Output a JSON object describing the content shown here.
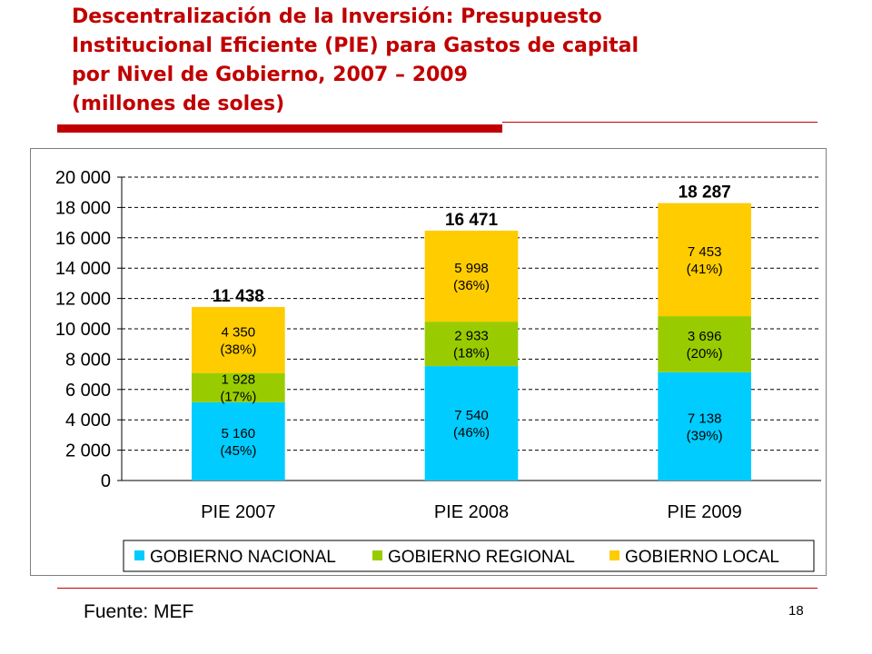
{
  "slide": {
    "title_lines": [
      "Descentralización de la Inversión: Presupuesto",
      "Institucional Eficiente (PIE) para Gastos de capital",
      "por Nivel de Gobierno, 2007 – 2009",
      "(millones de soles)"
    ],
    "source": "Fuente: MEF",
    "page_number": "18",
    "accent_color": "#c00000"
  },
  "chart_data": {
    "type": "bar",
    "stacked": true,
    "categories": [
      "PIE 2007",
      "PIE 2008",
      "PIE 2009"
    ],
    "series": [
      {
        "name": "GOBIERNO NACIONAL",
        "color": "#00ccff",
        "values": [
          5160,
          7540,
          7138
        ],
        "labels": [
          "5 160",
          "7 540",
          "7 138"
        ],
        "pct_labels": [
          "(45%)",
          "(46%)",
          "(39%)"
        ]
      },
      {
        "name": "GOBIERNO REGIONAL",
        "color": "#99cc00",
        "values": [
          1928,
          2933,
          3696
        ],
        "labels": [
          "1 928",
          "2 933",
          "3 696"
        ],
        "pct_labels": [
          "(17%)",
          "(18%)",
          "(20%)"
        ]
      },
      {
        "name": "GOBIERNO LOCAL",
        "color": "#ffcc00",
        "values": [
          4350,
          5998,
          7453
        ],
        "labels": [
          "4 350",
          "5 998",
          "7 453"
        ],
        "pct_labels": [
          "(38%)",
          "(36%)",
          "(41%)"
        ]
      }
    ],
    "totals": [
      11438,
      16471,
      18287
    ],
    "total_labels": [
      "11 438",
      "16 471",
      "18 287"
    ],
    "ylim": [
      0,
      20000
    ],
    "y_ticks": [
      0,
      2000,
      4000,
      6000,
      8000,
      10000,
      12000,
      14000,
      16000,
      18000,
      20000
    ],
    "y_tick_labels": [
      "0",
      "2 000",
      "4 000",
      "6 000",
      "8 000",
      "10 000",
      "12 000",
      "14 000",
      "16 000",
      "18 000",
      "20 000"
    ],
    "grid": "horizontal dashed",
    "legend_position": "bottom"
  }
}
